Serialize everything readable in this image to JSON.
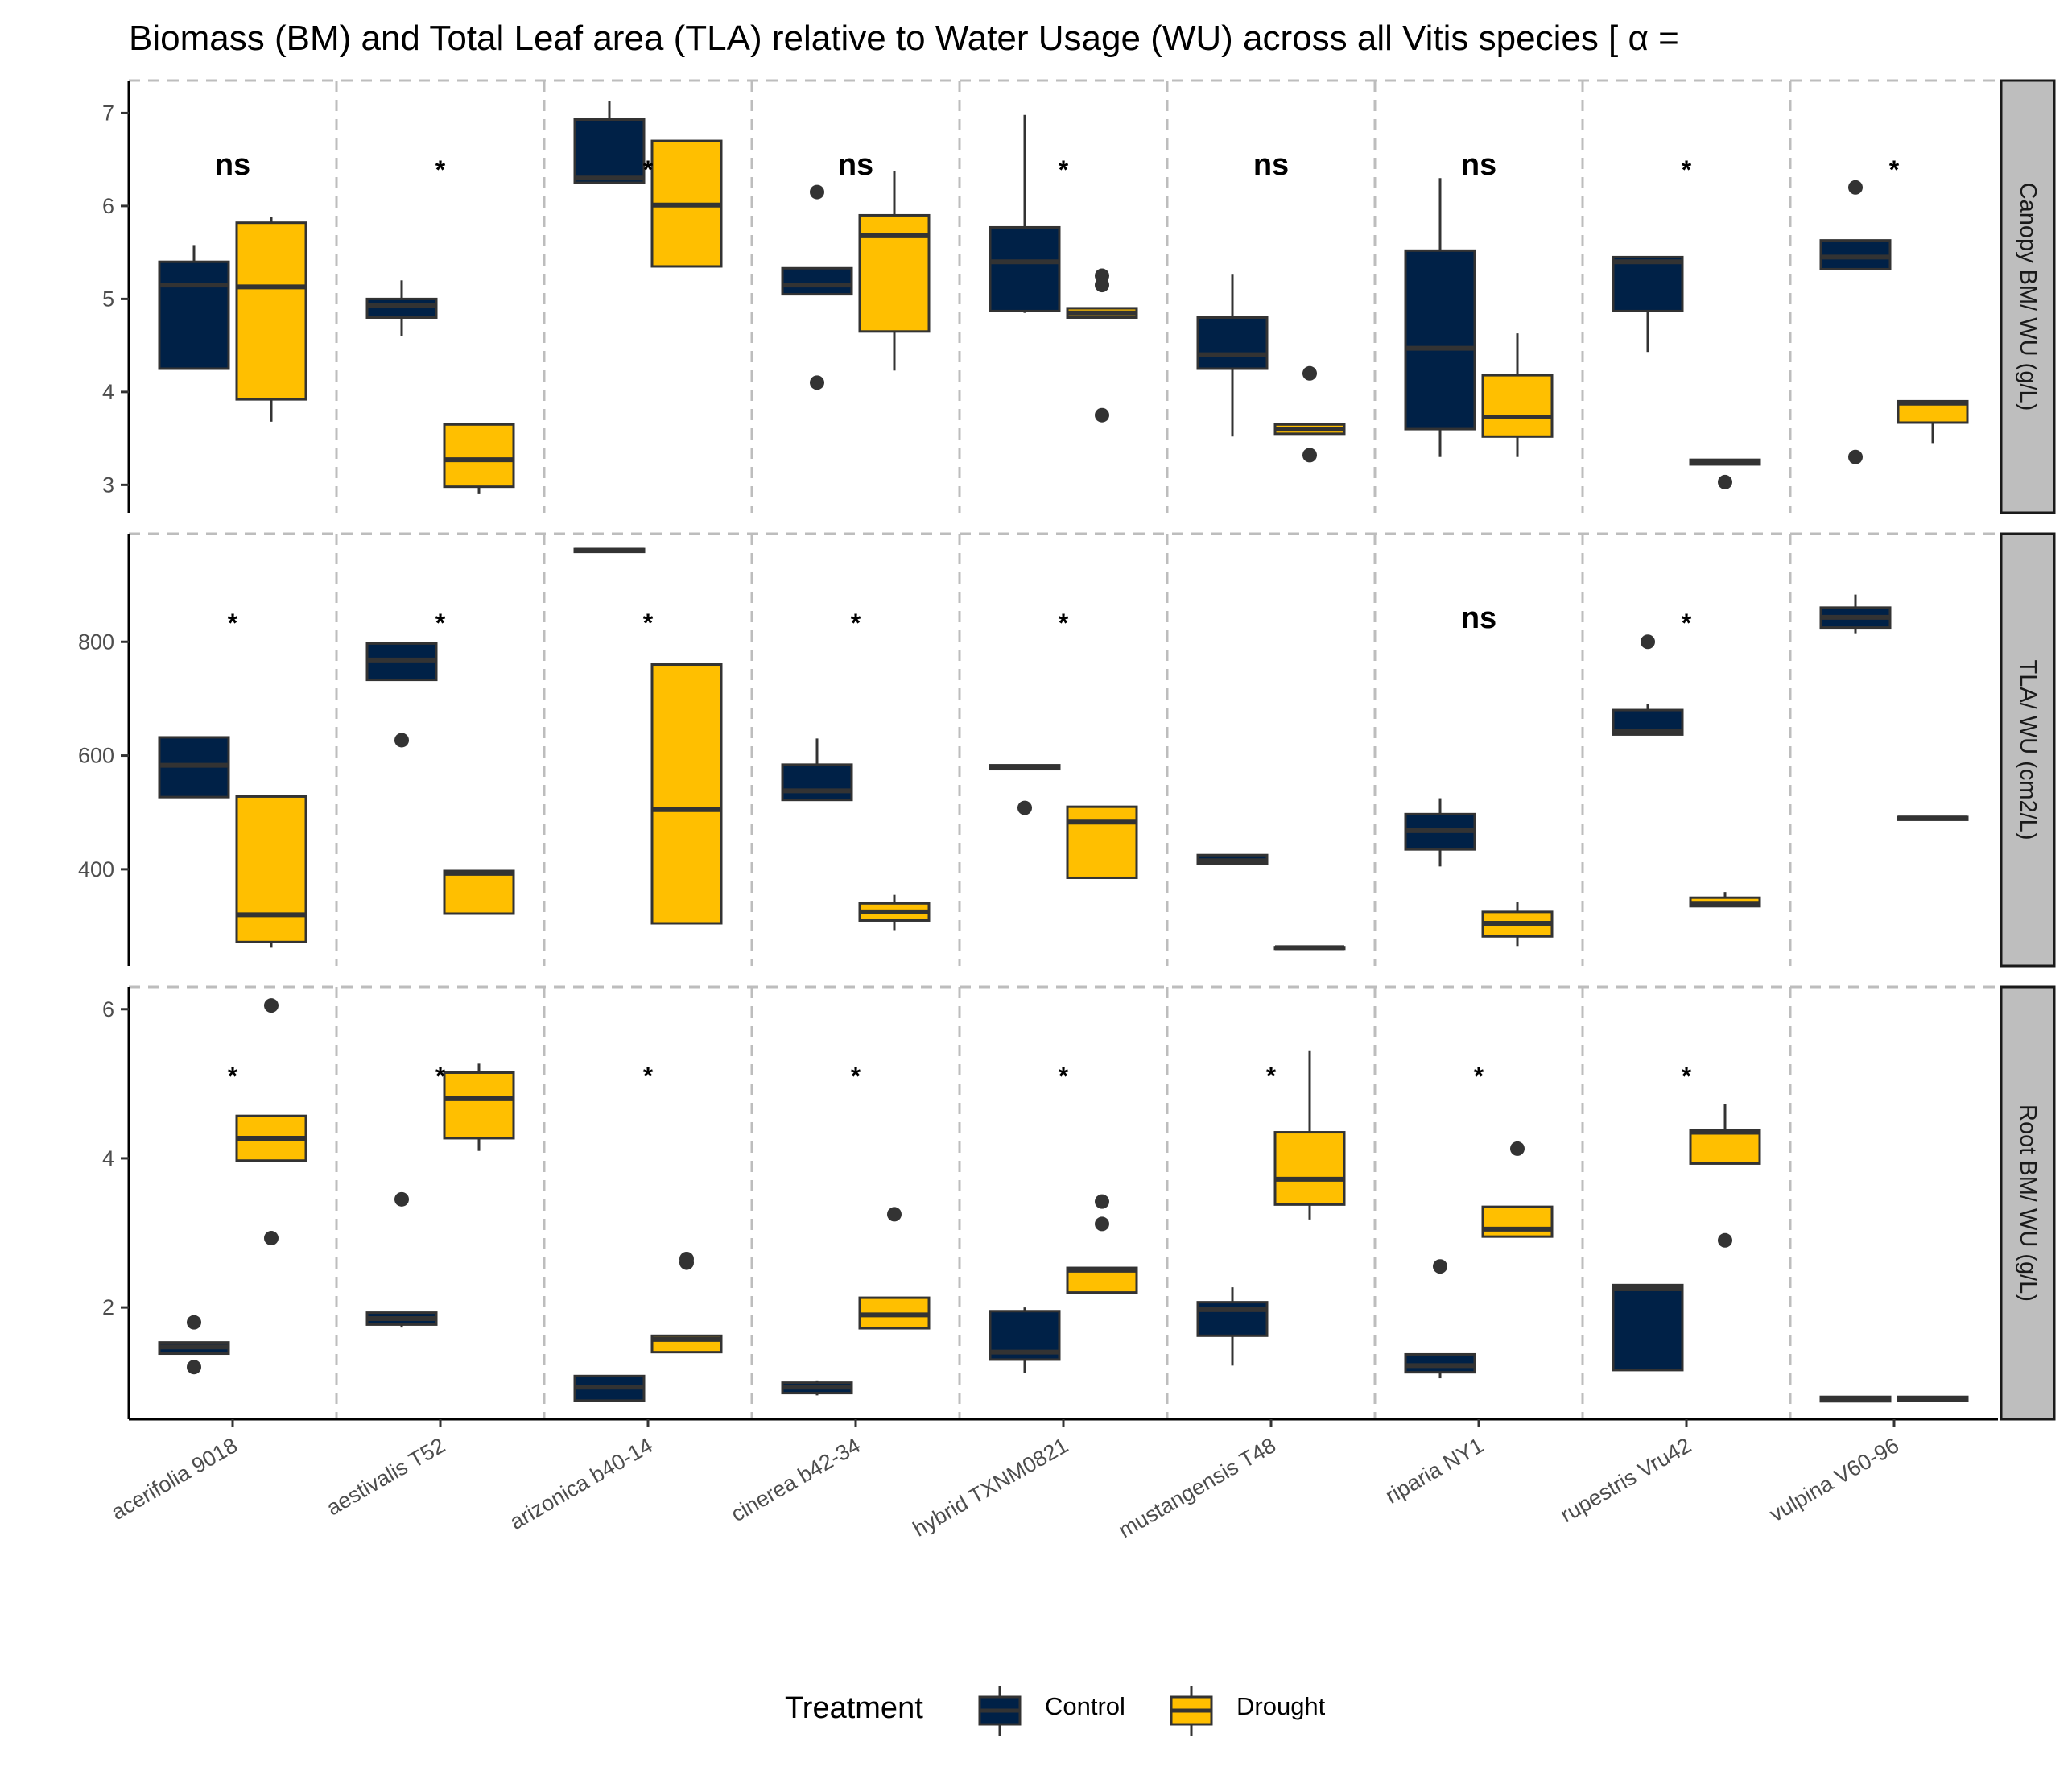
{
  "chart_data": {
    "type": "boxplot",
    "title": "Biomass (BM) and Total Leaf area (TLA) relative to Water Usage (WU) across all Vitis species [ α =",
    "xlabel": "",
    "categories": [
      "acerifolia 9018",
      "aestivalis T52",
      "arizonica b40-14",
      "cinerea b42-34",
      "hybrid TXNM0821",
      "mustangensis T48",
      "riparia NY1",
      "rupestris Vru42",
      "vulpina V60-96"
    ],
    "legend": {
      "title": "Treatment",
      "position": "bottom",
      "entries": [
        {
          "name": "Control",
          "color": "#002147"
        },
        {
          "name": "Drought",
          "color": "#FFBF00"
        }
      ]
    },
    "grid": "vertical dashed",
    "panels": [
      {
        "strip": "Canopy BM/ WU (g/L)",
        "ylim": [
          2.7,
          7.35
        ],
        "yticks": [
          3,
          4,
          5,
          6,
          7
        ],
        "significance": [
          "ns",
          "*",
          "*",
          "ns",
          "*",
          "ns",
          "ns",
          "*",
          "*"
        ],
        "series": [
          {
            "name": "Control",
            "boxes": [
              {
                "whisker_low": 4.25,
                "q1": 4.25,
                "median": 5.15,
                "q3": 5.4,
                "whisker_high": 5.58,
                "outliers": []
              },
              {
                "whisker_low": 4.6,
                "q1": 4.8,
                "median": 4.93,
                "q3": 5.0,
                "whisker_high": 5.2,
                "outliers": []
              },
              {
                "whisker_low": 6.25,
                "q1": 6.25,
                "median": 6.3,
                "q3": 6.93,
                "whisker_high": 7.13,
                "outliers": []
              },
              {
                "whisker_low": 5.05,
                "q1": 5.05,
                "median": 5.15,
                "q3": 5.33,
                "whisker_high": 5.33,
                "outliers": [
                  6.15,
                  4.1
                ]
              },
              {
                "whisker_low": 4.85,
                "q1": 4.87,
                "median": 5.4,
                "q3": 5.77,
                "whisker_high": 6.98,
                "outliers": []
              },
              {
                "whisker_low": 3.52,
                "q1": 4.25,
                "median": 4.4,
                "q3": 4.8,
                "whisker_high": 5.27,
                "outliers": []
              },
              {
                "whisker_low": 3.3,
                "q1": 3.6,
                "median": 4.47,
                "q3": 5.52,
                "whisker_high": 6.3,
                "outliers": []
              },
              {
                "whisker_low": 4.43,
                "q1": 4.87,
                "median": 5.4,
                "q3": 5.45,
                "whisker_high": 5.45,
                "outliers": []
              },
              {
                "whisker_low": 5.32,
                "q1": 5.32,
                "median": 5.45,
                "q3": 5.63,
                "whisker_high": 5.63,
                "outliers": [
                  6.2,
                  3.3
                ]
              }
            ]
          },
          {
            "name": "Drought",
            "boxes": [
              {
                "whisker_low": 3.68,
                "q1": 3.92,
                "median": 5.13,
                "q3": 5.82,
                "whisker_high": 5.88,
                "outliers": []
              },
              {
                "whisker_low": 2.9,
                "q1": 2.98,
                "median": 3.27,
                "q3": 3.65,
                "whisker_high": 3.65,
                "outliers": []
              },
              {
                "whisker_low": 5.35,
                "q1": 5.35,
                "median": 6.01,
                "q3": 6.7,
                "whisker_high": 6.7,
                "outliers": []
              },
              {
                "whisker_low": 4.23,
                "q1": 4.65,
                "median": 5.68,
                "q3": 5.9,
                "whisker_high": 6.38,
                "outliers": []
              },
              {
                "whisker_low": 4.8,
                "q1": 4.8,
                "median": 4.85,
                "q3": 4.9,
                "whisker_high": 4.9,
                "outliers": [
                  5.25,
                  5.15,
                  3.75
                ]
              },
              {
                "whisker_low": 3.55,
                "q1": 3.55,
                "median": 3.6,
                "q3": 3.65,
                "whisker_high": 3.65,
                "outliers": [
                  4.2,
                  3.32
                ]
              },
              {
                "whisker_low": 3.3,
                "q1": 3.52,
                "median": 3.73,
                "q3": 4.18,
                "whisker_high": 4.63,
                "outliers": []
              },
              {
                "whisker_low": 3.22,
                "q1": 3.22,
                "median": 3.25,
                "q3": 3.27,
                "whisker_high": 3.27,
                "outliers": [
                  3.03
                ]
              },
              {
                "whisker_low": 3.45,
                "q1": 3.67,
                "median": 3.88,
                "q3": 3.9,
                "whisker_high": 3.9,
                "outliers": []
              }
            ]
          }
        ]
      },
      {
        "strip": "TLA/ WU (cm2/L)",
        "ylim": [
          230,
          990
        ],
        "yticks": [
          400,
          600,
          800
        ],
        "significance": [
          "*",
          "*",
          "*",
          "*",
          "*",
          "",
          "ns",
          "*",
          ""
        ],
        "series": [
          {
            "name": "Control",
            "boxes": [
              {
                "whisker_low": 527,
                "q1": 527,
                "median": 583,
                "q3": 632,
                "whisker_high": 632,
                "outliers": []
              },
              {
                "whisker_low": 733,
                "q1": 733,
                "median": 768,
                "q3": 797,
                "whisker_high": 797,
                "outliers": [
                  627
                ]
              },
              {
                "whisker_low": 958,
                "q1": 958,
                "median": 961,
                "q3": 963,
                "whisker_high": 963,
                "outliers": []
              },
              {
                "whisker_low": 522,
                "q1": 522,
                "median": 538,
                "q3": 584,
                "whisker_high": 630,
                "outliers": []
              },
              {
                "whisker_low": 576,
                "q1": 576,
                "median": 580,
                "q3": 583,
                "whisker_high": 583,
                "outliers": [
                  508
                ]
              },
              {
                "whisker_low": 410,
                "q1": 410,
                "median": 415,
                "q3": 425,
                "whisker_high": 425,
                "outliers": []
              },
              {
                "whisker_low": 405,
                "q1": 435,
                "median": 468,
                "q3": 497,
                "whisker_high": 525,
                "outliers": []
              },
              {
                "whisker_low": 637,
                "q1": 637,
                "median": 643,
                "q3": 680,
                "whisker_high": 690,
                "outliers": [
                  800
                ]
              },
              {
                "whisker_low": 815,
                "q1": 825,
                "median": 843,
                "q3": 860,
                "whisker_high": 883,
                "outliers": []
              }
            ]
          },
          {
            "name": "Drought",
            "boxes": [
              {
                "whisker_low": 262,
                "q1": 272,
                "median": 320,
                "q3": 528,
                "whisker_high": 528,
                "outliers": []
              },
              {
                "whisker_low": 322,
                "q1": 322,
                "median": 393,
                "q3": 397,
                "whisker_high": 397,
                "outliers": []
              },
              {
                "whisker_low": 305,
                "q1": 305,
                "median": 505,
                "q3": 760,
                "whisker_high": 760,
                "outliers": []
              },
              {
                "whisker_low": 293,
                "q1": 310,
                "median": 325,
                "q3": 340,
                "whisker_high": 355,
                "outliers": []
              },
              {
                "whisker_low": 385,
                "q1": 385,
                "median": 483,
                "q3": 510,
                "whisker_high": 510,
                "outliers": []
              },
              {
                "whisker_low": 260,
                "q1": 260,
                "median": 262,
                "q3": 263,
                "whisker_high": 263,
                "outliers": []
              },
              {
                "whisker_low": 265,
                "q1": 282,
                "median": 305,
                "q3": 325,
                "whisker_high": 343,
                "outliers": []
              },
              {
                "whisker_low": 335,
                "q1": 335,
                "median": 340,
                "q3": 350,
                "whisker_high": 360,
                "outliers": []
              },
              {
                "whisker_low": 487,
                "q1": 487,
                "median": 490,
                "q3": 492,
                "whisker_high": 492,
                "outliers": []
              }
            ]
          }
        ]
      },
      {
        "strip": "Root BM/ WU (g/L)",
        "ylim": [
          0.5,
          6.3
        ],
        "yticks": [
          2,
          4,
          6
        ],
        "significance": [
          "*",
          "*",
          "*",
          "*",
          "*",
          "*",
          "*",
          "*",
          ""
        ],
        "series": [
          {
            "name": "Control",
            "boxes": [
              {
                "whisker_low": 1.38,
                "q1": 1.38,
                "median": 1.47,
                "q3": 1.53,
                "whisker_high": 1.53,
                "outliers": [
                  1.8,
                  1.2
                ]
              },
              {
                "whisker_low": 1.73,
                "q1": 1.77,
                "median": 1.85,
                "q3": 1.93,
                "whisker_high": 1.93,
                "outliers": [
                  3.45
                ]
              },
              {
                "whisker_low": 0.75,
                "q1": 0.75,
                "median": 0.93,
                "q3": 1.08,
                "whisker_high": 1.08,
                "outliers": []
              },
              {
                "whisker_low": 0.82,
                "q1": 0.85,
                "median": 0.93,
                "q3": 0.99,
                "whisker_high": 1.02,
                "outliers": []
              },
              {
                "whisker_low": 1.12,
                "q1": 1.3,
                "median": 1.4,
                "q3": 1.95,
                "whisker_high": 2.0,
                "outliers": []
              },
              {
                "whisker_low": 1.22,
                "q1": 1.62,
                "median": 1.97,
                "q3": 2.07,
                "whisker_high": 2.27,
                "outliers": []
              },
              {
                "whisker_low": 1.05,
                "q1": 1.13,
                "median": 1.22,
                "q3": 1.37,
                "whisker_high": 1.37,
                "outliers": [
                  2.55
                ]
              },
              {
                "whisker_low": 1.16,
                "q1": 1.16,
                "median": 2.25,
                "q3": 2.3,
                "whisker_high": 2.3,
                "outliers": []
              },
              {
                "whisker_low": 0.74,
                "q1": 0.74,
                "median": 0.77,
                "q3": 0.8,
                "whisker_high": 0.8,
                "outliers": []
              }
            ]
          },
          {
            "name": "Drought",
            "boxes": [
              {
                "whisker_low": 3.97,
                "q1": 3.97,
                "median": 4.27,
                "q3": 4.57,
                "whisker_high": 4.57,
                "outliers": [
                  6.05,
                  2.93
                ]
              },
              {
                "whisker_low": 4.1,
                "q1": 4.27,
                "median": 4.8,
                "q3": 5.15,
                "whisker_high": 5.27,
                "outliers": []
              },
              {
                "whisker_low": 1.4,
                "q1": 1.4,
                "median": 1.57,
                "q3": 1.62,
                "whisker_high": 1.62,
                "outliers": [
                  2.65,
                  2.6
                ]
              },
              {
                "whisker_low": 1.72,
                "q1": 1.72,
                "median": 1.9,
                "q3": 2.13,
                "whisker_high": 2.13,
                "outliers": [
                  3.25
                ]
              },
              {
                "whisker_low": 2.2,
                "q1": 2.2,
                "median": 2.5,
                "q3": 2.53,
                "whisker_high": 2.53,
                "outliers": [
                  3.42,
                  3.12
                ]
              },
              {
                "whisker_low": 3.18,
                "q1": 3.38,
                "median": 3.72,
                "q3": 4.35,
                "whisker_high": 5.45,
                "outliers": []
              },
              {
                "whisker_low": 2.95,
                "q1": 2.95,
                "median": 3.05,
                "q3": 3.35,
                "whisker_high": 3.35,
                "outliers": [
                  4.13
                ]
              },
              {
                "whisker_low": 3.93,
                "q1": 3.93,
                "median": 4.35,
                "q3": 4.38,
                "whisker_high": 4.73,
                "outliers": [
                  2.9
                ]
              },
              {
                "whisker_low": 0.75,
                "q1": 0.75,
                "median": 0.77,
                "q3": 0.8,
                "whisker_high": 0.8,
                "outliers": []
              }
            ]
          }
        ]
      }
    ]
  }
}
